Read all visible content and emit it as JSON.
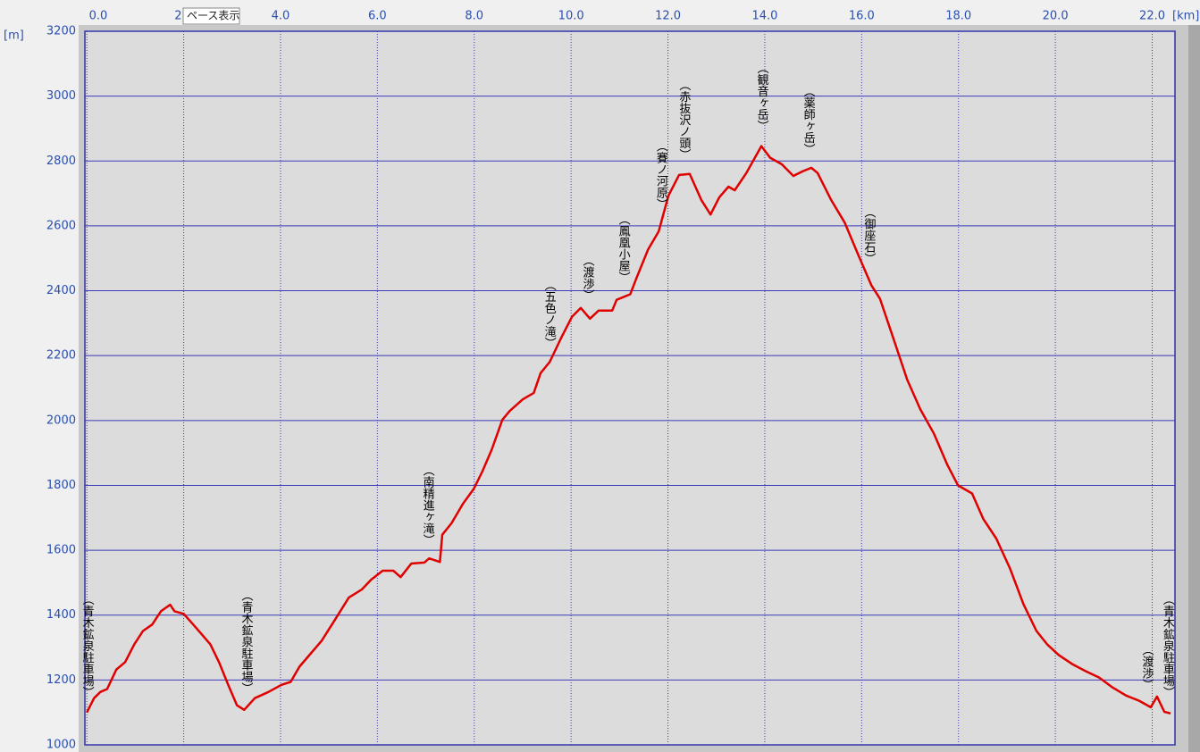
{
  "chart_data": {
    "type": "line",
    "x_label": "[km]",
    "y_label": "[m]",
    "xlim": [
      -0.04,
      22.47
    ],
    "ylim": [
      1000,
      3200
    ],
    "xticks": [
      {
        "value": 0,
        "label": "0.0"
      },
      {
        "value": 2,
        "label": "2.0"
      },
      {
        "value": 4,
        "label": "4.0"
      },
      {
        "value": 6,
        "label": "6.0"
      },
      {
        "value": 8,
        "label": "8.0"
      },
      {
        "value": 10,
        "label": "10.0"
      },
      {
        "value": 12,
        "label": "12.0"
      },
      {
        "value": 14,
        "label": "14.0"
      },
      {
        "value": 16,
        "label": "16.0"
      },
      {
        "value": 18,
        "label": "18.0"
      },
      {
        "value": 20,
        "label": "20.0"
      },
      {
        "value": 22,
        "label": "22.0"
      }
    ],
    "yticks": [
      1000,
      1200,
      1400,
      1600,
      1800,
      2000,
      2200,
      2400,
      2600,
      2800,
      3000,
      3200
    ],
    "grid": true,
    "color": "#e00000",
    "x": [
      0,
      0.15,
      0.28,
      0.42,
      0.61,
      0.79,
      0.98,
      1.16,
      1.35,
      1.53,
      1.72,
      1.81,
      2.0,
      2.18,
      2.36,
      2.55,
      2.73,
      2.92,
      3.1,
      3.25,
      3.47,
      3.75,
      4.02,
      4.21,
      4.39,
      4.58,
      4.85,
      5.13,
      5.41,
      5.68,
      5.87,
      6.11,
      6.33,
      6.48,
      6.7,
      6.97,
      7.07,
      7.29,
      7.34,
      7.53,
      7.77,
      7.99,
      8.17,
      8.36,
      8.58,
      8.73,
      9.0,
      9.23,
      9.37,
      9.56,
      9.8,
      10.02,
      10.2,
      10.39,
      10.57,
      10.85,
      10.94,
      11.22,
      11.35,
      11.59,
      11.81,
      12.01,
      12.23,
      12.45,
      12.69,
      12.88,
      13.06,
      13.25,
      13.38,
      13.62,
      13.93,
      14.11,
      14.35,
      14.59,
      14.78,
      14.96,
      15.09,
      15.37,
      15.65,
      15.92,
      16.2,
      16.38,
      16.66,
      16.94,
      17.21,
      17.49,
      17.77,
      17.99,
      18.28,
      18.51,
      18.78,
      19.06,
      19.34,
      19.61,
      19.83,
      20.07,
      20.35,
      20.63,
      20.9,
      21.18,
      21.46,
      21.73,
      21.97,
      22.1,
      22.25,
      22.38
    ],
    "values": [
      1100,
      1144,
      1163,
      1172,
      1232,
      1255,
      1310,
      1351,
      1371,
      1412,
      1432,
      1412,
      1404,
      1374,
      1343,
      1310,
      1255,
      1185,
      1122,
      1108,
      1144,
      1163,
      1185,
      1194,
      1241,
      1274,
      1321,
      1387,
      1454,
      1479,
      1509,
      1537,
      1537,
      1517,
      1559,
      1562,
      1575,
      1564,
      1648,
      1683,
      1744,
      1789,
      1844,
      1910,
      2002,
      2029,
      2065,
      2085,
      2146,
      2181,
      2256,
      2320,
      2347,
      2314,
      2339,
      2339,
      2372,
      2389,
      2439,
      2527,
      2583,
      2693,
      2757,
      2760,
      2680,
      2635,
      2688,
      2721,
      2710,
      2763,
      2846,
      2810,
      2790,
      2754,
      2768,
      2779,
      2763,
      2680,
      2610,
      2514,
      2417,
      2375,
      2251,
      2126,
      2035,
      1960,
      1863,
      1800,
      1775,
      1697,
      1636,
      1545,
      1434,
      1351,
      1310,
      1277,
      1249,
      1227,
      1208,
      1177,
      1152,
      1136,
      1116,
      1149,
      1102,
      1097
    ],
    "annotations": [
      {
        "text": "（青木鉱泉駐車場）",
        "x": 0
      },
      {
        "text": "（青木鉱泉駐車場）",
        "x": 3.28
      },
      {
        "text": "（南精進ヶ滝）",
        "x": 7.03
      },
      {
        "text": "（五色ノ滝）",
        "x": 9.54
      },
      {
        "text": "（渡渉）",
        "x": 10.33
      },
      {
        "text": "（鳳凰小屋）",
        "x": 11.07
      },
      {
        "text": "（賽ノ河原）",
        "x": 11.85
      },
      {
        "text": "（赤抜沢ノ頭）",
        "x": 12.32
      },
      {
        "text": "（観音ヶ岳）",
        "x": 13.93
      },
      {
        "text": "（薬師ヶ岳）",
        "x": 14.89
      },
      {
        "text": "（御座石）",
        "x": 16.14
      },
      {
        "text": "（渡渉）",
        "x": 21.88
      },
      {
        "text": "（青木鉱泉駐車場）",
        "x": 22.31
      }
    ]
  },
  "tooltip": "ペース表示"
}
